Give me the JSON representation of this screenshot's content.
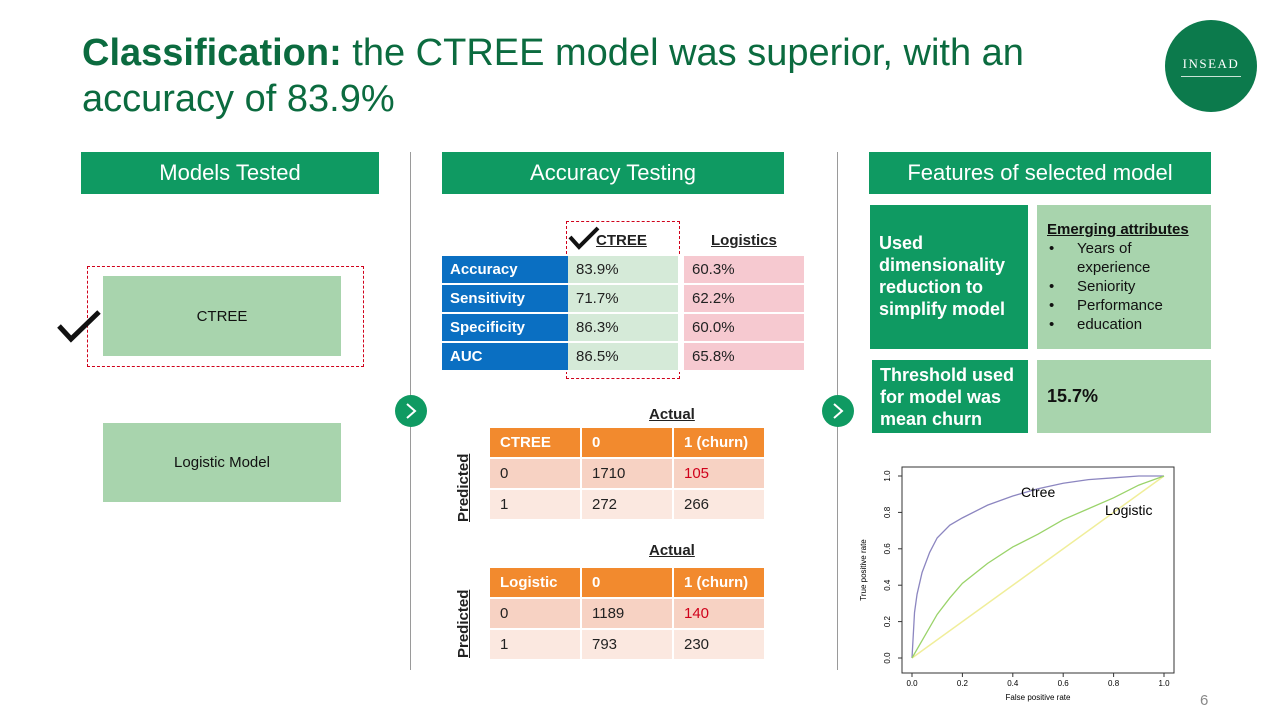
{
  "title": {
    "bold": "Classification:",
    "rest": " the CTREE model was superior, with an accuracy of 83.9%"
  },
  "logo": {
    "text": "INSEAD"
  },
  "sections": {
    "models": "Models Tested",
    "accuracy": "Accuracy Testing",
    "features": "Features of selected model"
  },
  "models": {
    "ctree": "CTREE",
    "logistic": "Logistic Model"
  },
  "accuracy_table": {
    "col_ctree": "CTREE",
    "col_logistics": "Logistics",
    "rows": [
      {
        "label": "Accuracy",
        "ctree": "83.9%",
        "logistics": "60.3%"
      },
      {
        "label": "Sensitivity",
        "ctree": "71.7%",
        "logistics": "62.2%"
      },
      {
        "label": "Specificity",
        "ctree": "86.3%",
        "logistics": "60.0%"
      },
      {
        "label": "AUC",
        "ctree": "86.5%",
        "logistics": "65.8%"
      }
    ]
  },
  "confusion_ctree": {
    "actual": "Actual",
    "predicted": "Predicted",
    "header": [
      "CTREE",
      "0",
      "1 (churn)"
    ],
    "rows": [
      [
        "0",
        "1710",
        "105"
      ],
      [
        "1",
        "272",
        "266"
      ]
    ]
  },
  "confusion_logistic": {
    "actual": "Actual",
    "predicted": "Predicted",
    "header": [
      "Logistic",
      "0",
      "1 (churn)"
    ],
    "rows": [
      [
        "0",
        "1189",
        "140"
      ],
      [
        "1",
        "793",
        "230"
      ]
    ]
  },
  "features": {
    "dimensionality": "Used dimensionality reduction to simplify model",
    "attributes_title": "Emerging attributes",
    "attributes": [
      "Years of experience",
      "Seniority",
      "Performance",
      "education"
    ],
    "threshold_label": "Threshold used for model was mean churn",
    "threshold_value": "15.7%"
  },
  "chart_data": {
    "type": "line",
    "xlabel": "False positive rate",
    "ylabel": "True positive rate",
    "xlim": [
      0,
      1
    ],
    "ylim": [
      0,
      1
    ],
    "xticks": [
      "0.0",
      "0.2",
      "0.4",
      "0.6",
      "0.8",
      "1.0"
    ],
    "yticks": [
      "0.0",
      "0.2",
      "0.4",
      "0.6",
      "0.8",
      "1.0"
    ],
    "colors": {
      "ctree": "#8c86c0",
      "logistic": "#9ad36a",
      "diagonal": "#f0ee9a"
    },
    "series": [
      {
        "name": "Ctree",
        "x": [
          0,
          0.01,
          0.02,
          0.04,
          0.07,
          0.1,
          0.15,
          0.2,
          0.3,
          0.4,
          0.5,
          0.6,
          0.7,
          0.8,
          0.9,
          1.0
        ],
        "y": [
          0,
          0.25,
          0.35,
          0.47,
          0.58,
          0.66,
          0.73,
          0.77,
          0.84,
          0.89,
          0.93,
          0.96,
          0.98,
          0.99,
          1.0,
          1.0
        ]
      },
      {
        "name": "Logistic",
        "x": [
          0,
          0.05,
          0.1,
          0.15,
          0.2,
          0.3,
          0.4,
          0.5,
          0.6,
          0.7,
          0.8,
          0.9,
          1.0
        ],
        "y": [
          0,
          0.12,
          0.24,
          0.33,
          0.41,
          0.52,
          0.61,
          0.68,
          0.76,
          0.82,
          0.88,
          0.95,
          1.0
        ]
      }
    ]
  },
  "page_number": "6"
}
